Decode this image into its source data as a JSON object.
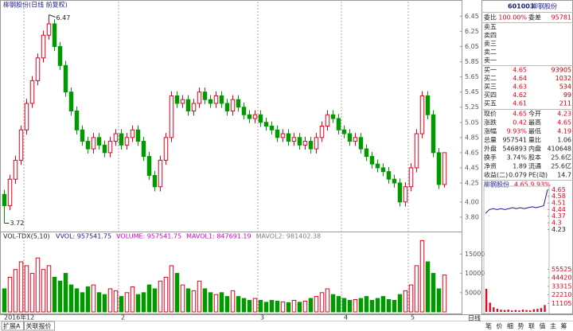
{
  "chart_data": [
    {
      "type": "candlestick",
      "title": "柳钢股份(日线 前复权)",
      "categories": [
        "2016年",
        null,
        null,
        null,
        "12",
        null,
        null,
        null,
        null,
        null,
        null,
        null,
        null,
        null,
        null,
        null,
        null,
        null,
        null,
        null,
        null,
        "2",
        null,
        null,
        null,
        null,
        null,
        null,
        null,
        null,
        null,
        null,
        null,
        null,
        null,
        null,
        null,
        null,
        null,
        null,
        null,
        null,
        null,
        null,
        null,
        null,
        "3",
        null,
        null,
        null,
        null,
        null,
        null,
        null,
        null,
        null,
        null,
        null,
        null,
        null,
        null,
        "4",
        null,
        null,
        null,
        null,
        null,
        null,
        null,
        null,
        null,
        null,
        null,
        "5",
        null,
        null,
        null,
        null,
        null,
        null
      ],
      "open": [
        4.1,
        3.95,
        4.3,
        4.55,
        4.95,
        5.3,
        5.6,
        5.9,
        6.2,
        6.35,
        6.05,
        5.8,
        5.45,
        5.2,
        4.95,
        4.8,
        4.7,
        4.85,
        4.75,
        4.65,
        4.8,
        4.9,
        4.75,
        4.85,
        4.95,
        4.8,
        4.6,
        4.35,
        4.2,
        4.55,
        4.85,
        5.4,
        5.3,
        5.35,
        5.2,
        5.3,
        5.45,
        5.35,
        5.3,
        5.4,
        5.3,
        5.2,
        5.35,
        5.25,
        5.15,
        5.1,
        5.15,
        5.05,
        5.0,
        4.95,
        4.85,
        4.9,
        4.8,
        4.85,
        4.75,
        4.8,
        4.7,
        4.85,
        5.0,
        5.15,
        5.1,
        4.95,
        4.9,
        4.8,
        4.85,
        4.7,
        4.6,
        4.5,
        4.45,
        4.4,
        4.3,
        4.25,
        4.0,
        4.2,
        4.45,
        4.9,
        5.4,
        5.15,
        4.65,
        4.23
      ],
      "high": [
        4.16,
        4.36,
        4.61,
        5.01,
        5.36,
        5.66,
        5.96,
        6.26,
        6.47,
        6.41,
        6.11,
        5.86,
        5.51,
        5.26,
        5.01,
        4.86,
        4.91,
        4.91,
        4.81,
        4.86,
        4.96,
        4.96,
        4.91,
        5.01,
        5.01,
        4.86,
        4.66,
        4.41,
        4.61,
        4.91,
        5.46,
        5.46,
        5.41,
        5.41,
        5.36,
        5.51,
        5.51,
        5.41,
        5.46,
        5.46,
        5.36,
        5.41,
        5.41,
        5.31,
        5.21,
        5.21,
        5.21,
        5.11,
        5.06,
        5.01,
        4.96,
        4.96,
        4.91,
        4.91,
        4.86,
        4.86,
        4.91,
        5.06,
        5.21,
        5.21,
        5.16,
        5.01,
        4.96,
        4.91,
        4.91,
        4.76,
        4.66,
        4.56,
        4.51,
        4.46,
        4.36,
        4.31,
        4.26,
        4.51,
        4.96,
        5.46,
        5.46,
        5.21,
        4.71,
        4.65
      ],
      "low": [
        3.72,
        3.89,
        4.24,
        4.49,
        4.89,
        5.24,
        5.54,
        5.84,
        6.14,
        5.99,
        5.74,
        5.39,
        5.14,
        4.89,
        4.74,
        4.64,
        4.64,
        4.69,
        4.59,
        4.59,
        4.74,
        4.69,
        4.69,
        4.79,
        4.74,
        4.54,
        4.29,
        4.14,
        4.14,
        4.49,
        4.79,
        5.24,
        5.24,
        5.14,
        5.14,
        5.24,
        5.29,
        5.24,
        5.24,
        5.24,
        5.14,
        5.14,
        5.19,
        5.09,
        5.04,
        5.04,
        4.99,
        4.94,
        4.89,
        4.79,
        4.79,
        4.74,
        4.74,
        4.69,
        4.69,
        4.64,
        4.64,
        4.79,
        4.94,
        5.04,
        4.89,
        4.84,
        4.74,
        4.74,
        4.64,
        4.54,
        4.44,
        4.39,
        4.34,
        4.24,
        4.19,
        3.94,
        3.94,
        4.14,
        4.39,
        4.84,
        5.09,
        4.59,
        4.17,
        4.19
      ],
      "close": [
        3.95,
        4.3,
        4.55,
        4.95,
        5.3,
        5.6,
        5.9,
        6.2,
        6.35,
        6.05,
        5.8,
        5.45,
        5.2,
        4.95,
        4.8,
        4.7,
        4.85,
        4.75,
        4.65,
        4.8,
        4.9,
        4.75,
        4.85,
        4.95,
        4.8,
        4.6,
        4.35,
        4.2,
        4.55,
        4.85,
        5.4,
        5.3,
        5.35,
        5.2,
        5.3,
        5.45,
        5.35,
        5.3,
        5.4,
        5.3,
        5.2,
        5.35,
        5.25,
        5.15,
        5.1,
        5.15,
        5.05,
        5.0,
        4.95,
        4.85,
        4.9,
        4.8,
        4.85,
        4.75,
        4.8,
        4.7,
        4.85,
        5.0,
        5.15,
        5.1,
        4.95,
        4.9,
        4.8,
        4.85,
        4.7,
        4.6,
        4.5,
        4.45,
        4.4,
        4.3,
        4.25,
        4.0,
        4.2,
        4.45,
        4.9,
        5.4,
        5.15,
        4.65,
        4.23,
        4.65
      ],
      "up_color": "#e8001c",
      "down_color": "#009a00",
      "annotations": [
        "6.47",
        "3.72"
      ],
      "ylim": [
        3.62,
        6.58
      ],
      "yticks": [
        6.45,
        6.25,
        6.05,
        5.85,
        5.65,
        5.45,
        5.25,
        5.05,
        4.85,
        4.65,
        4.45,
        4.25,
        {
          "value": 4,
          "label": "4.00"
        },
        {
          "value": 3.8,
          "label": "3.80"
        }
      ]
    },
    {
      "type": "bar",
      "title": "VOL-TDX(5,10)",
      "legend_texts": [
        {
          "text": "VVOL: 957541.75",
          "color": "#1a1a8c"
        },
        {
          "text": "VOLUME: 957541.75",
          "color": "#cc00cc"
        },
        {
          "text": "MAVOL1: 847691.19",
          "color": "#cc00cc"
        },
        {
          "text": "MAVOL2: 981402.38",
          "color": "#808080"
        }
      ],
      "values": [
        6000,
        9000,
        11000,
        13000,
        12000,
        10000,
        14000,
        11000,
        12000,
        9000,
        8000,
        10000,
        7000,
        6000,
        5000,
        6500,
        7000,
        5000,
        4500,
        6000,
        5500,
        4000,
        5000,
        6500,
        4500,
        5000,
        7000,
        6000,
        8000,
        9000,
        12000,
        10000,
        7000,
        6000,
        5500,
        8000,
        6000,
        5000,
        4500,
        5000,
        4000,
        5500,
        4000,
        3500,
        3000,
        3500,
        3000,
        2500,
        3000,
        2800,
        2600,
        2400,
        3000,
        2500,
        2800,
        3500,
        4000,
        5000,
        6000,
        4500,
        4000,
        3500,
        3000,
        3200,
        3500,
        4000,
        3000,
        3500,
        4000,
        3200,
        3000,
        4500,
        5500,
        7000,
        12000,
        18500,
        13000,
        10000,
        6000,
        9575
      ],
      "ylim": [
        0,
        19000
      ],
      "yticks": [
        15000,
        10000,
        5000
      ]
    },
    {
      "type": "line",
      "title": "柳钢股份",
      "subtitle": "4.65 9.93%",
      "color": "#1a1a8c",
      "values": [
        4.4,
        4.44,
        4.45,
        4.44,
        4.45,
        4.44,
        4.45,
        4.46,
        4.45,
        4.46,
        4.45,
        4.46,
        4.47,
        4.46,
        4.47,
        4.48,
        4.65
      ],
      "ylim": [
        4.2,
        4.67
      ],
      "yticks": [
        4.65,
        4.58,
        4.51,
        4.44,
        4.37,
        4.3,
        4.23
      ]
    },
    {
      "type": "bar",
      "color": "#e8001c",
      "values": [
        30000,
        12000,
        6000,
        4000,
        3000,
        2500,
        3000,
        2000,
        2500,
        2000,
        3000,
        2500,
        2000,
        3500,
        4000,
        5000,
        9000
      ],
      "ylim": [
        0,
        60000
      ],
      "yticks": [
        55525,
        44420,
        33315,
        22210,
        11105
      ]
    }
  ],
  "quote": {
    "code": "601003",
    "name": "柳钢股份",
    "ratio": [
      "委比",
      "100.00%",
      "委差",
      "95781"
    ],
    "asks": [
      "卖五",
      "卖四",
      "卖三",
      "卖二",
      "卖一"
    ],
    "bids": [
      [
        "买一",
        "4.65",
        "93905"
      ],
      [
        "买二",
        "4.64",
        "1032"
      ],
      [
        "买三",
        "4.63",
        "534"
      ],
      [
        "买四",
        "4.62",
        "99"
      ],
      [
        "买五",
        "4.61",
        "211"
      ]
    ],
    "stats": [
      [
        "现价",
        "4.65",
        "今开",
        "4.23"
      ],
      [
        "涨跌",
        "0.42",
        "最高",
        "4.65"
      ],
      [
        "涨幅",
        "9.93%",
        "最低",
        "4.19"
      ],
      [
        "总量",
        "957541",
        "量比",
        "1.06"
      ],
      [
        "外盘",
        "546893",
        "内盘",
        "410648"
      ],
      [
        "换手",
        "3.74%",
        "股本",
        "25.6亿"
      ],
      [
        "净资",
        "1.89",
        "流通",
        "25.6亿"
      ],
      [
        "收益(二)",
        "0.079",
        "PE(动)",
        "14.7"
      ]
    ]
  },
  "footer": {
    "left": [
      "扩展A",
      "关联报价"
    ],
    "period": "日线",
    "right": [
      "笔",
      "价",
      "细",
      "势",
      "联",
      "值",
      "主",
      "筹"
    ]
  }
}
